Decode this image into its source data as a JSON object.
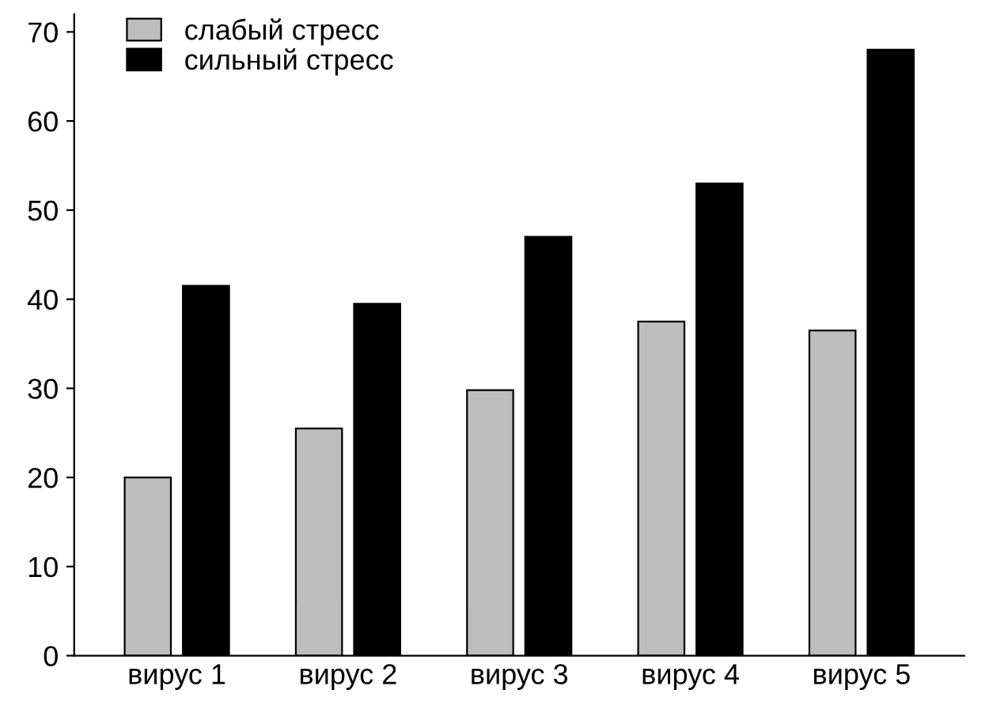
{
  "chart_data": {
    "type": "bar",
    "categories": [
      "вирус 1",
      "вирус 2",
      "вирус 3",
      "вирус 4",
      "вирус 5"
    ],
    "series": [
      {
        "name": "слабый стресс",
        "color": "#bdbdbd",
        "values": [
          20,
          25.5,
          29.8,
          37.5,
          36.5
        ]
      },
      {
        "name": "сильный стресс",
        "color": "#000000",
        "values": [
          41.5,
          39.5,
          47,
          53,
          68
        ]
      }
    ],
    "ylim": [
      0,
      72
    ],
    "yticks": [
      0,
      10,
      20,
      30,
      40,
      50,
      60,
      70
    ],
    "grid": false,
    "legend": "top left"
  }
}
